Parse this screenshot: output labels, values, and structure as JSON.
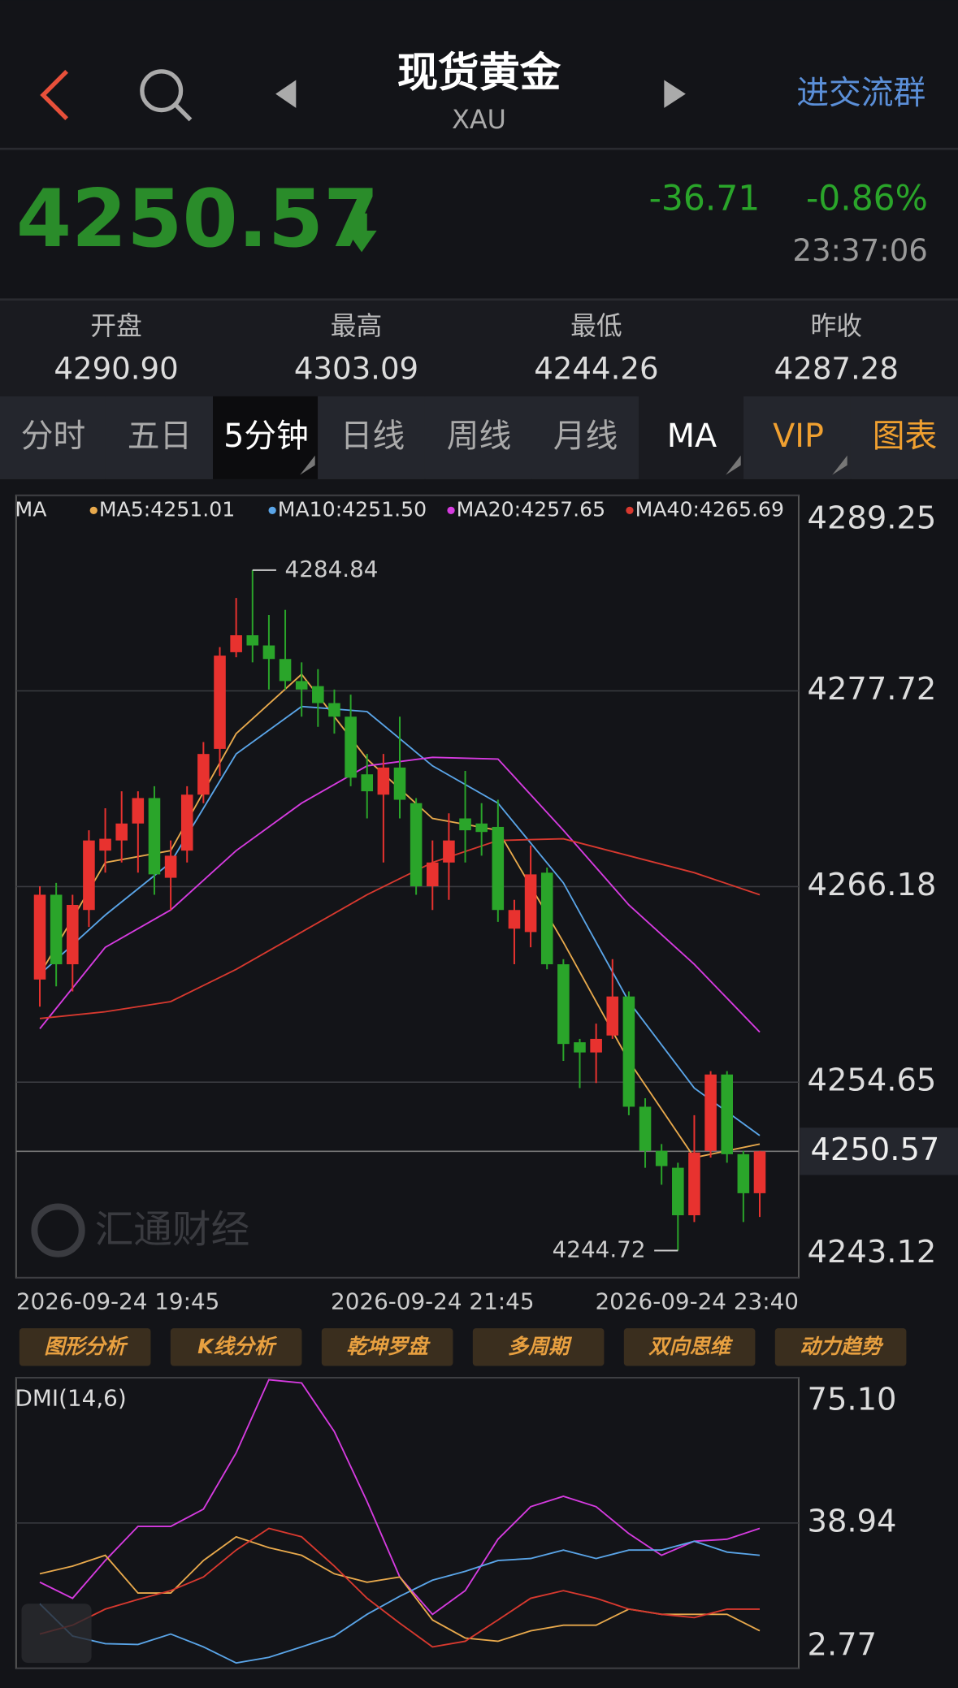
{
  "header": {
    "title": "现货黄金",
    "subtitle": "XAU",
    "action": "进交流群"
  },
  "quote": {
    "price": 4250.57,
    "change": -36.71,
    "change_pct": "-0.86%",
    "time": "23:37:06"
  },
  "stats": [
    {
      "label": "开盘",
      "value": "4290.90"
    },
    {
      "label": "最高",
      "value": "4303.09"
    },
    {
      "label": "最低",
      "value": "4244.26"
    },
    {
      "label": "昨收",
      "value": "4287.28"
    }
  ],
  "tabs": [
    "分时",
    "五日",
    "5分钟",
    "日线",
    "周线",
    "月线",
    "MA",
    "VIP",
    "图表"
  ],
  "tools": [
    "图形分析",
    "K线分析",
    "乾坤罗盘",
    "多周期",
    "双向思维",
    "动力趋势"
  ],
  "watermark": "汇通财经",
  "chart_data": [
    {
      "type": "candlestick",
      "legend_title": "MA",
      "open": [
        4260.7,
        4265.7,
        4261.6,
        4264.8,
        4268.3,
        4268.9,
        4269.9,
        4271.4,
        4266.7,
        4268.3,
        4271.6,
        4274.3,
        4280.0,
        4281.0,
        4280.4,
        4279.6,
        4278.3,
        4278.0,
        4277.0,
        4276.2,
        4272.8,
        4271.6,
        4273.2,
        4271.1,
        4266.2,
        4267.6,
        4270.2,
        4269.9,
        4269.7,
        4263.7,
        4263.5,
        4267.0,
        4261.6,
        4257.0,
        4256.4,
        4257.4,
        4259.7,
        4253.2,
        4250.6,
        4249.6,
        4246.8,
        4250.6,
        4255.1,
        4250.4,
        4248.1
      ],
      "high": [
        4266.2,
        4266.4,
        4265.7,
        4269.5,
        4270.8,
        4271.8,
        4271.8,
        4272.1,
        4268.9,
        4272.1,
        4274.7,
        4280.3,
        4283.2,
        4284.84,
        4282.2,
        4282.5,
        4279.4,
        4279.0,
        4277.8,
        4277.5,
        4274.0,
        4274.0,
        4276.2,
        4271.4,
        4268.9,
        4270.5,
        4273.0,
        4271.1,
        4271.3,
        4265.4,
        4268.6,
        4267.3,
        4261.9,
        4257.2,
        4258.1,
        4261.9,
        4260.0,
        4253.7,
        4251.0,
        4249.9,
        4252.7,
        4255.3,
        4255.3,
        4250.6,
        4250.6
      ],
      "low": [
        4259.1,
        4260.3,
        4260.0,
        4263.8,
        4267.0,
        4267.6,
        4267.0,
        4265.7,
        4264.8,
        4267.6,
        4271.1,
        4272.7,
        4279.7,
        4279.4,
        4277.8,
        4277.8,
        4276.2,
        4275.6,
        4275.2,
        4272.1,
        4270.2,
        4267.6,
        4270.2,
        4265.7,
        4264.8,
        4265.4,
        4267.6,
        4268.0,
        4264.1,
        4261.6,
        4262.6,
        4261.3,
        4255.9,
        4254.3,
        4254.6,
        4257.2,
        4252.7,
        4249.6,
        4248.6,
        4244.72,
        4246.4,
        4250.2,
        4249.9,
        4246.4,
        4246.7
      ],
      "close": [
        4265.7,
        4261.6,
        4265.1,
        4268.9,
        4269.0,
        4269.9,
        4271.4,
        4266.9,
        4268.0,
        4271.6,
        4274.0,
        4279.8,
        4281.0,
        4280.4,
        4279.6,
        4278.3,
        4277.8,
        4277.0,
        4276.2,
        4272.6,
        4271.8,
        4273.2,
        4271.3,
        4266.2,
        4267.6,
        4268.9,
        4269.5,
        4269.4,
        4264.8,
        4264.8,
        4266.9,
        4261.6,
        4256.9,
        4256.4,
        4257.2,
        4259.7,
        4253.2,
        4250.6,
        4249.7,
        4246.8,
        4250.5,
        4255.1,
        4250.4,
        4248.1,
        4250.57
      ],
      "up_color": "#e8322f",
      "down_color": "#2aa52a",
      "ma_x": [
        0,
        4,
        8,
        12,
        16,
        20,
        24,
        28,
        32,
        36,
        40,
        44
      ],
      "series": [
        {
          "name": "MA5:4251.01",
          "color": "#e8a94c",
          "values": [
            4261.0,
            4267.6,
            4268.3,
            4275.2,
            4278.7,
            4273.7,
            4270.2,
            4269.5,
            4262.9,
            4255.9,
            4250.2,
            4251.0
          ]
        },
        {
          "name": "MA10:4251.50",
          "color": "#5aa5e8",
          "values": [
            4261.0,
            4264.5,
            4267.6,
            4274.0,
            4276.8,
            4276.5,
            4273.3,
            4271.1,
            4266.4,
            4259.4,
            4254.3,
            4251.5
          ]
        },
        {
          "name": "MA20:4257.65",
          "color": "#d63be0",
          "values": [
            4257.8,
            4262.6,
            4264.8,
            4268.3,
            4271.1,
            4273.3,
            4273.8,
            4273.7,
            4269.5,
            4265.1,
            4261.6,
            4257.6
          ]
        },
        {
          "name": "MA40:4265.69",
          "color": "#d8392f",
          "values": [
            4258.4,
            4258.8,
            4259.4,
            4261.3,
            4263.5,
            4265.7,
            4267.6,
            4268.9,
            4269.0,
            4268.0,
            4267.0,
            4265.7
          ]
        }
      ],
      "ylim": [
        4243.12,
        4289.25
      ],
      "yticks": [
        4289.25,
        4277.72,
        4266.18,
        4254.65,
        4243.12
      ],
      "xticks": [
        {
          "value": 0,
          "label": "2026-09-24 19:45"
        },
        {
          "value": 24,
          "label": "2026-09-24 21:45"
        },
        {
          "value": 44,
          "label": "2026-09-24 23:40"
        }
      ],
      "last_price": 4250.57,
      "high_mark": 4284.84,
      "low_mark": 4244.72
    },
    {
      "type": "line",
      "title": "DMI(14,6)",
      "x": [
        0,
        2,
        4,
        6,
        8,
        10,
        12,
        14,
        16,
        18,
        20,
        22,
        24,
        26,
        28,
        30,
        32,
        34,
        36,
        38,
        40,
        42,
        44
      ],
      "series": [
        {
          "color": "#d63be0",
          "values": [
            24.2,
            20.2,
            29.6,
            38.1,
            38.1,
            42.4,
            56.4,
            74.6,
            73.8,
            61.7,
            44.3,
            25.5,
            16.2,
            22.1,
            34.9,
            43.0,
            45.6,
            43.0,
            36.3,
            30.9,
            34.4,
            34.9,
            37.6
          ]
        },
        {
          "color": "#5aa5e8",
          "values": [
            18.8,
            10.8,
            8.9,
            8.7,
            11.3,
            8.1,
            4.1,
            5.5,
            8.1,
            10.8,
            16.2,
            20.7,
            24.7,
            26.9,
            29.6,
            30.1,
            32.2,
            30.1,
            32.2,
            32.2,
            34.4,
            31.7,
            30.9
          ]
        },
        {
          "color": "#e8a94c",
          "values": [
            26.3,
            28.2,
            30.9,
            21.5,
            21.5,
            29.6,
            35.5,
            32.8,
            30.9,
            26.3,
            24.2,
            25.5,
            14.8,
            10.3,
            9.5,
            12.1,
            13.5,
            13.5,
            17.5,
            16.2,
            16.2,
            16.2,
            12.1
          ]
        },
        {
          "color": "#d8392f",
          "values": [
            11.3,
            13.5,
            17.5,
            19.9,
            22.1,
            25.5,
            32.2,
            37.6,
            35.5,
            28.2,
            20.2,
            14.0,
            8.1,
            9.5,
            14.8,
            20.2,
            22.1,
            20.2,
            17.5,
            16.2,
            15.4,
            17.5,
            17.5
          ]
        }
      ],
      "ylim": [
        2.77,
        75.1
      ],
      "yticks": [
        {
          "value": 75.1,
          "label": "75.10"
        },
        38.94,
        2.77
      ],
      "grid": true
    }
  ]
}
